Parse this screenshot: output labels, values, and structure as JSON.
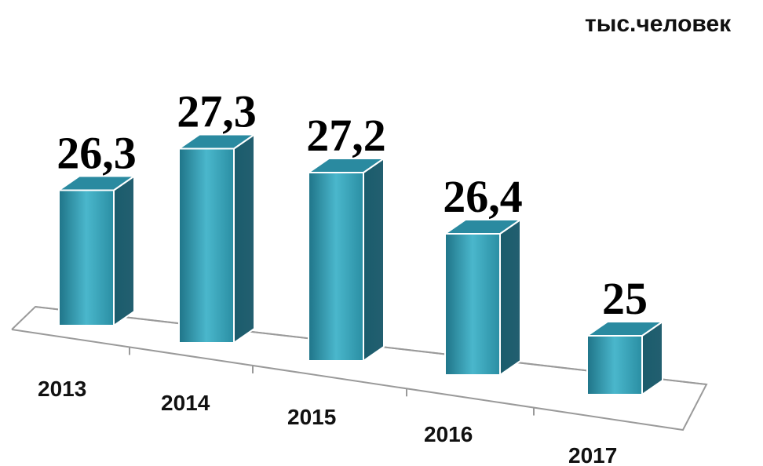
{
  "chart_data": {
    "type": "bar",
    "unit_label": "тыс.человек",
    "categories": [
      "2013",
      "2014",
      "2015",
      "2016",
      "2017"
    ],
    "value_labels": [
      "26,3",
      "27,3",
      "27,2",
      "26,4",
      "25"
    ],
    "values": [
      26.3,
      27.3,
      27.2,
      26.4,
      25
    ],
    "ylim": [
      24,
      27.7
    ],
    "grid": false,
    "legend": "none",
    "style": "3d-column",
    "colors": {
      "front_light": "#4ab7cc",
      "front_dark": "#1c6f82",
      "side": "#1a5c6c",
      "top": "#2a8aa0",
      "floor_line": "#9a9a9a"
    }
  }
}
